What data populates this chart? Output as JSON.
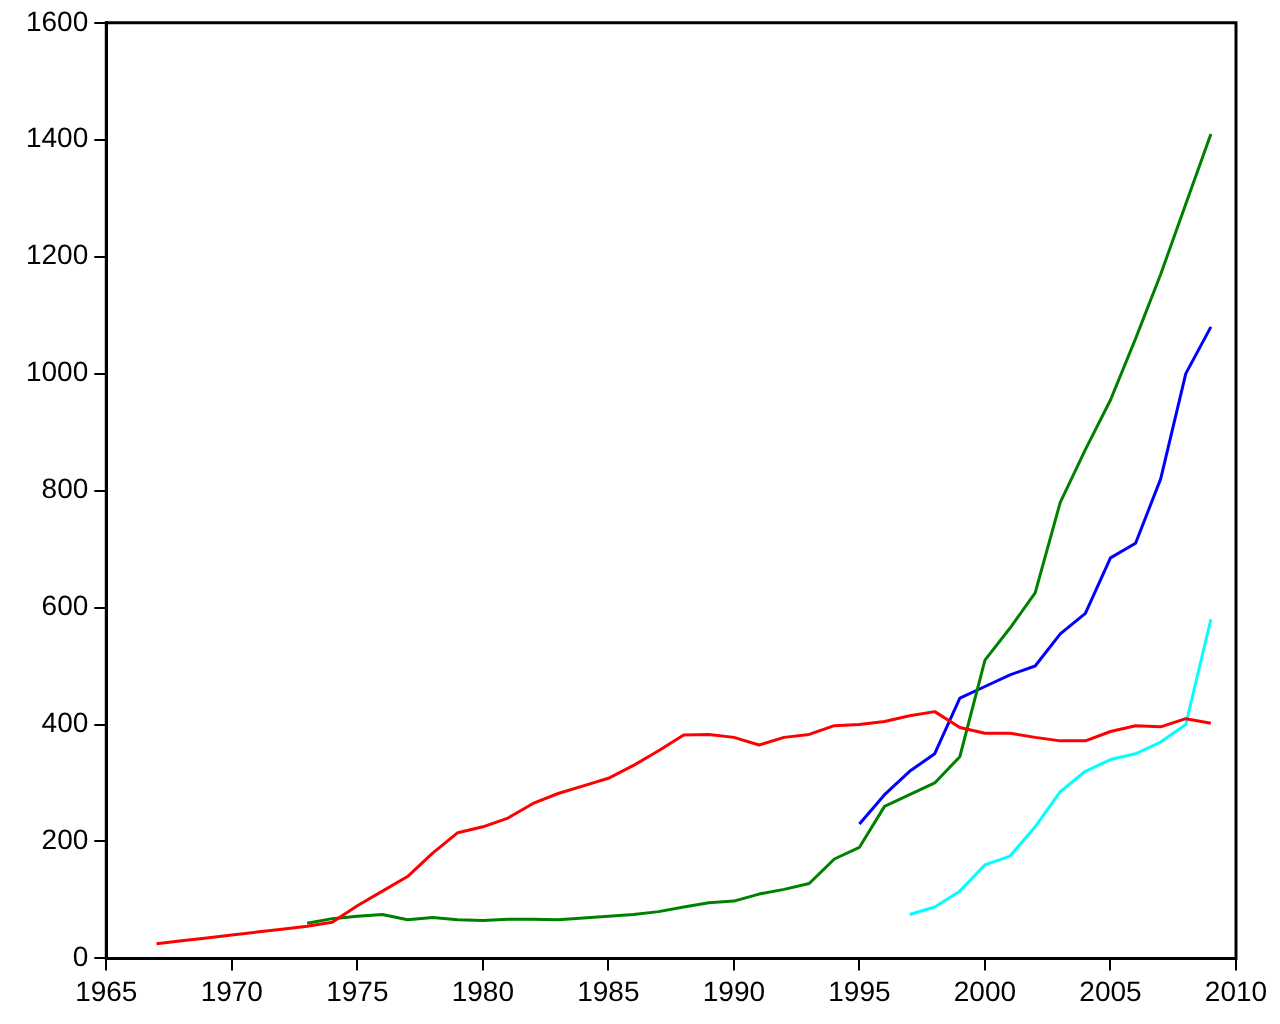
{
  "chart_data": {
    "type": "line",
    "xlim": [
      1965,
      2010
    ],
    "xticks": [
      1965,
      1970,
      1975,
      1980,
      1985,
      1990,
      1995,
      2000,
      2005,
      2010
    ],
    "ylim": [
      0,
      1600
    ],
    "yticks": [
      0,
      200,
      400,
      600,
      800,
      1000,
      1200,
      1400,
      1600
    ],
    "grid": false,
    "legend": false,
    "marker": "none",
    "line_style": "solid",
    "series": [
      {
        "color": "#ff0000",
        "x": [
          1967,
          1968,
          1969,
          1970,
          1971,
          1972,
          1973,
          1974,
          1975,
          1976,
          1977,
          1978,
          1979,
          1980,
          1981,
          1982,
          1983,
          1984,
          1985,
          1986,
          1987,
          1988,
          1989,
          1990,
          1991,
          1992,
          1993,
          1994,
          1995,
          1996,
          1997,
          1998,
          1999,
          2000,
          2001,
          2002,
          2003,
          2004,
          2005,
          2006,
          2007,
          2008,
          2009
        ],
        "values": [
          25,
          30,
          35,
          40,
          45,
          50,
          55,
          62,
          90,
          115,
          140,
          180,
          215,
          225,
          240,
          265,
          282,
          295,
          308,
          330,
          355,
          382,
          383,
          378,
          365,
          378,
          383,
          398,
          400,
          405,
          415,
          422,
          395,
          385,
          385,
          378,
          372,
          372,
          388,
          398,
          396,
          410,
          402
        ]
      },
      {
        "color": "#008000",
        "x": [
          1973,
          1974,
          1975,
          1976,
          1977,
          1978,
          1979,
          1980,
          1981,
          1982,
          1983,
          1984,
          1985,
          1986,
          1987,
          1988,
          1989,
          1990,
          1991,
          1992,
          1993,
          1994,
          1995,
          1996,
          1997,
          1998,
          1999,
          2000,
          2001,
          2002,
          2003,
          2004,
          2005,
          2006,
          2007,
          2008,
          2009
        ],
        "values": [
          60,
          68,
          72,
          75,
          66,
          70,
          66,
          65,
          67,
          67,
          66,
          69,
          72,
          75,
          80,
          88,
          95,
          98,
          110,
          118,
          128,
          170,
          190,
          260,
          280,
          300,
          345,
          510,
          565,
          625,
          780,
          870,
          955,
          1060,
          1170,
          1290,
          1410
        ]
      },
      {
        "color": "#0000ff",
        "x": [
          1995,
          1996,
          1997,
          1998,
          1999,
          2000,
          2001,
          2002,
          2003,
          2004,
          2005,
          2006,
          2007,
          2008,
          2009
        ],
        "values": [
          230,
          280,
          320,
          350,
          445,
          465,
          485,
          500,
          555,
          590,
          685,
          710,
          820,
          1000,
          1080
        ]
      },
      {
        "color": "#00ffff",
        "x": [
          1997,
          1998,
          1999,
          2000,
          2001,
          2002,
          2003,
          2004,
          2005,
          2006,
          2007,
          2008,
          2009
        ],
        "values": [
          75,
          88,
          115,
          160,
          175,
          225,
          285,
          320,
          340,
          350,
          370,
          400,
          580
        ]
      }
    ]
  }
}
